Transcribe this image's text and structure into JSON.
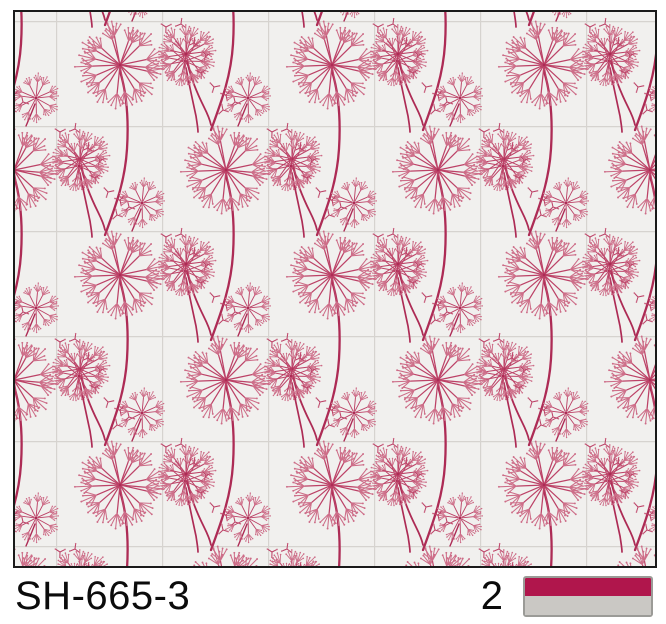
{
  "pattern": {
    "description": "dandelion wallpaper sample",
    "background_color": "#f1f0ee",
    "grid_color": "#d6d3cf",
    "flower_color": "#bc4267",
    "flower_light_color": "#cd6d88",
    "stem_color": "#ad2b55",
    "border_color": "#1a1a1a"
  },
  "footer": {
    "product_code": "SH-665-3",
    "quantity": "2",
    "swatch": {
      "top_color": "#b0164c",
      "bottom_color": "#cac8c4",
      "border_color": "#9b9b97"
    }
  }
}
